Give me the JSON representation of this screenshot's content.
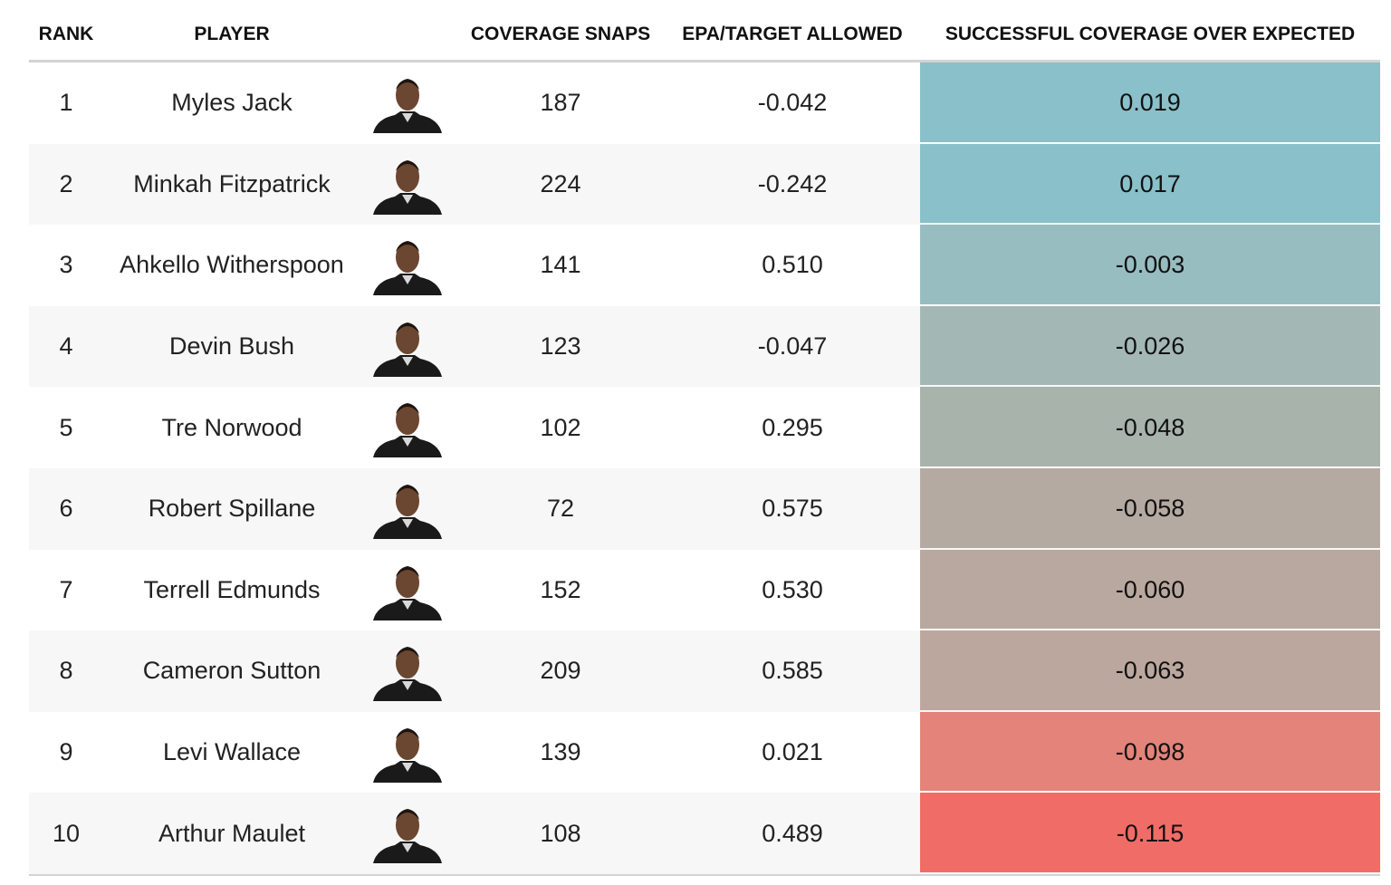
{
  "table": {
    "headers": [
      "RANK",
      "PLAYER",
      "COVERAGE SNAPS",
      "EPA/TARGET ALLOWED",
      "SUCCESSFUL COVERAGE OVER EXPECTED"
    ],
    "rows": [
      [
        "1",
        "Myles Jack",
        "187",
        "-0.042",
        "0.019"
      ],
      [
        "2",
        "Minkah Fitzpatrick",
        "224",
        "-0.242",
        "0.017"
      ],
      [
        "3",
        "Ahkello Witherspoon",
        "141",
        "0.510",
        "-0.003"
      ],
      [
        "4",
        "Devin Bush",
        "123",
        "-0.047",
        "-0.026"
      ],
      [
        "5",
        "Tre Norwood",
        "102",
        "0.295",
        "-0.048"
      ],
      [
        "6",
        "Robert Spillane",
        "72",
        "0.575",
        "-0.058"
      ],
      [
        "7",
        "Terrell Edmunds",
        "152",
        "0.530",
        "-0.060"
      ],
      [
        "8",
        "Cameron Sutton",
        "209",
        "0.585",
        "-0.063"
      ],
      [
        "9",
        "Levi Wallace",
        "139",
        "0.021",
        "-0.098"
      ],
      [
        "10",
        "Arthur Maulet",
        "108",
        "0.489",
        "-0.115"
      ]
    ],
    "colors": [
      "#89c0c9",
      "#89c0ca",
      "#97bdc1",
      "#a3b8b5",
      "#a8b3ab",
      "#b5aaa1",
      "#b9a89f",
      "#bca79f",
      "#e3837a",
      "#f06c67"
    ]
  }
}
